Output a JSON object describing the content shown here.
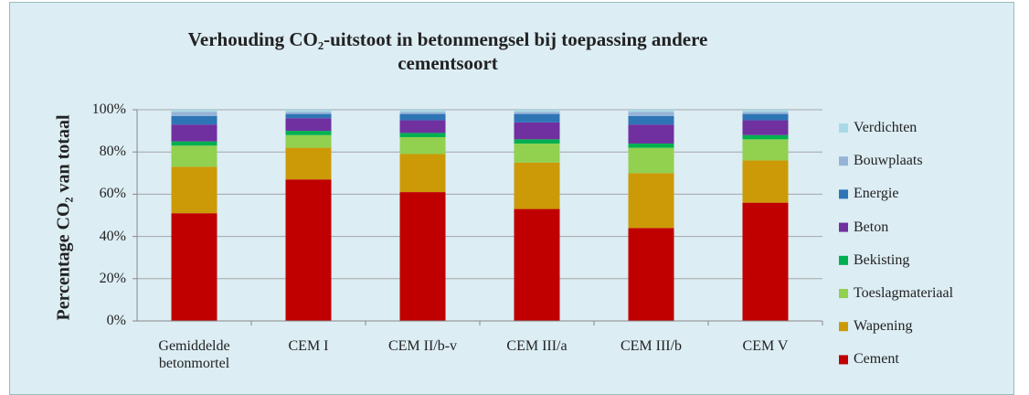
{
  "chart_data": {
    "type": "stacked_bar",
    "title": "Verhouding CO₂-uitstoot in betonmengsel  bij toepassing andere cementsoort",
    "ylabel": "Percentage CO₂ van totaal",
    "categories": [
      "Gemiddelde betonmortel",
      "CEM I",
      "CEM II/b-v",
      "CEM III/a",
      "CEM III/b",
      "CEM V"
    ],
    "series": [
      {
        "name": "Cement",
        "color": "#c00000",
        "values": [
          51,
          67,
          61,
          53,
          44,
          56
        ]
      },
      {
        "name": "Wapening",
        "color": "#cc9a06",
        "values": [
          22,
          15,
          18,
          22,
          26,
          20
        ]
      },
      {
        "name": "Toeslagmateriaal",
        "color": "#92d050",
        "values": [
          10,
          6,
          8,
          9,
          12,
          10
        ]
      },
      {
        "name": "Bekisting",
        "color": "#00b050",
        "values": [
          2,
          2,
          2,
          2,
          2,
          2
        ]
      },
      {
        "name": "Beton",
        "color": "#7030a0",
        "values": [
          8,
          6,
          6,
          8,
          9,
          7
        ]
      },
      {
        "name": "Energie",
        "color": "#2e75b6",
        "values": [
          4,
          2,
          3,
          4,
          4,
          3
        ]
      },
      {
        "name": "Bouwplaats",
        "color": "#95b3d7",
        "values": [
          2,
          1,
          1,
          1,
          2,
          1
        ]
      },
      {
        "name": "Verdichten",
        "color": "#a9d9e6",
        "values": [
          1,
          1,
          1,
          1,
          1,
          1
        ]
      }
    ],
    "ylim": [
      0,
      100
    ],
    "yticks": [
      {
        "value": 0,
        "label": "0%"
      },
      {
        "value": 20,
        "label": "20%"
      },
      {
        "value": 40,
        "label": "40%"
      },
      {
        "value": 60,
        "label": "60%"
      },
      {
        "value": 80,
        "label": "80%"
      },
      {
        "value": 100,
        "label": "100%"
      }
    ],
    "grid": true,
    "legend": "right"
  }
}
